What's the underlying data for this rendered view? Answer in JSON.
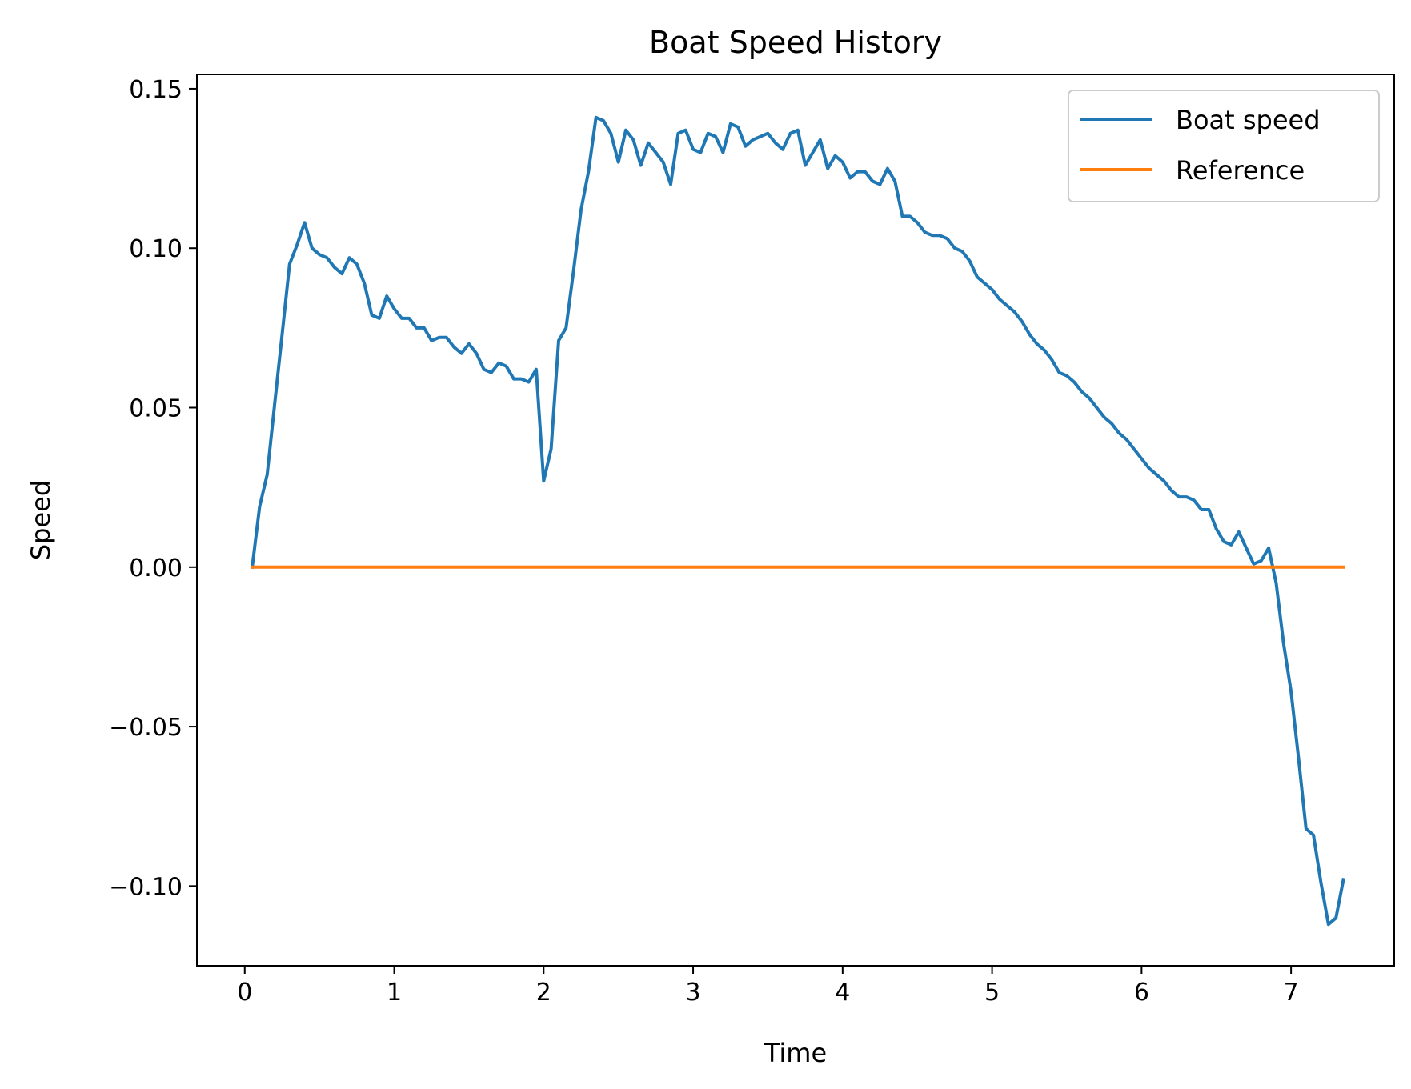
{
  "chart_data": {
    "type": "line",
    "title": "Boat Speed History",
    "xlabel": "Time",
    "ylabel": "Speed",
    "xlim": [
      -0.32,
      7.69
    ],
    "ylim": [
      -0.125,
      0.1545
    ],
    "xticks": [
      0,
      1,
      2,
      3,
      4,
      5,
      6,
      7
    ],
    "xtick_labels": [
      "0",
      "1",
      "2",
      "3",
      "4",
      "5",
      "6",
      "7"
    ],
    "yticks": [
      -0.1,
      -0.05,
      0.0,
      0.05,
      0.1,
      0.15
    ],
    "ytick_labels": [
      "−0.10",
      "−0.05",
      "0.00",
      "0.05",
      "0.10",
      "0.15"
    ],
    "grid": false,
    "legend": {
      "position": "top-right"
    },
    "series": [
      {
        "name": "Boat speed",
        "color": "#1f77b4",
        "x": [
          0.05,
          0.1,
          0.15,
          0.2,
          0.25,
          0.3,
          0.35,
          0.4,
          0.45,
          0.5,
          0.55,
          0.6,
          0.65,
          0.7,
          0.75,
          0.8,
          0.85,
          0.9,
          0.95,
          1.0,
          1.05,
          1.1,
          1.15,
          1.2,
          1.25,
          1.3,
          1.35,
          1.4,
          1.45,
          1.5,
          1.55,
          1.6,
          1.65,
          1.7,
          1.75,
          1.8,
          1.85,
          1.9,
          1.95,
          2.0,
          2.05,
          2.1,
          2.15,
          2.2,
          2.25,
          2.3,
          2.35,
          2.4,
          2.45,
          2.5,
          2.55,
          2.6,
          2.65,
          2.7,
          2.75,
          2.8,
          2.85,
          2.9,
          2.95,
          3.0,
          3.05,
          3.1,
          3.15,
          3.2,
          3.25,
          3.3,
          3.35,
          3.4,
          3.45,
          3.5,
          3.55,
          3.6,
          3.65,
          3.7,
          3.75,
          3.8,
          3.85,
          3.9,
          3.95,
          4.0,
          4.05,
          4.1,
          4.15,
          4.2,
          4.25,
          4.3,
          4.35,
          4.4,
          4.45,
          4.5,
          4.55,
          4.6,
          4.65,
          4.7,
          4.75,
          4.8,
          4.85,
          4.9,
          4.95,
          5.0,
          5.05,
          5.1,
          5.15,
          5.2,
          5.25,
          5.3,
          5.35,
          5.4,
          5.45,
          5.5,
          5.55,
          5.6,
          5.65,
          5.7,
          5.75,
          5.8,
          5.85,
          5.9,
          5.95,
          6.0,
          6.05,
          6.1,
          6.15,
          6.2,
          6.25,
          6.3,
          6.35,
          6.4,
          6.45,
          6.5,
          6.55,
          6.6,
          6.65,
          6.7,
          6.75,
          6.8,
          6.85,
          6.9,
          6.95,
          7.0,
          7.05,
          7.1,
          7.15,
          7.2,
          7.25,
          7.3,
          7.35
        ],
        "y": [
          0.0,
          0.019,
          0.029,
          0.051,
          0.073,
          0.095,
          0.101,
          0.108,
          0.1,
          0.098,
          0.097,
          0.094,
          0.092,
          0.097,
          0.095,
          0.089,
          0.079,
          0.078,
          0.085,
          0.081,
          0.078,
          0.078,
          0.075,
          0.075,
          0.071,
          0.072,
          0.072,
          0.069,
          0.067,
          0.07,
          0.067,
          0.062,
          0.061,
          0.064,
          0.063,
          0.059,
          0.059,
          0.058,
          0.062,
          0.027,
          0.037,
          0.071,
          0.075,
          0.093,
          0.112,
          0.124,
          0.141,
          0.14,
          0.136,
          0.127,
          0.137,
          0.134,
          0.126,
          0.133,
          0.13,
          0.127,
          0.12,
          0.136,
          0.137,
          0.131,
          0.13,
          0.136,
          0.135,
          0.13,
          0.139,
          0.138,
          0.132,
          0.134,
          0.135,
          0.136,
          0.133,
          0.131,
          0.136,
          0.137,
          0.126,
          0.13,
          0.134,
          0.125,
          0.129,
          0.127,
          0.122,
          0.124,
          0.124,
          0.121,
          0.12,
          0.125,
          0.121,
          0.11,
          0.11,
          0.108,
          0.105,
          0.104,
          0.104,
          0.103,
          0.1,
          0.099,
          0.096,
          0.091,
          0.089,
          0.087,
          0.084,
          0.082,
          0.08,
          0.077,
          0.073,
          0.07,
          0.068,
          0.065,
          0.061,
          0.06,
          0.058,
          0.055,
          0.053,
          0.05,
          0.047,
          0.045,
          0.042,
          0.04,
          0.037,
          0.034,
          0.031,
          0.029,
          0.027,
          0.024,
          0.022,
          0.022,
          0.021,
          0.018,
          0.018,
          0.012,
          0.008,
          0.007,
          0.011,
          0.006,
          0.001,
          0.002,
          0.006,
          -0.005,
          -0.024,
          -0.039,
          -0.06,
          -0.082,
          -0.084,
          -0.099,
          -0.112,
          -0.11,
          -0.098
        ]
      },
      {
        "name": "Reference",
        "color": "#ff7f0e",
        "x": [
          0.05,
          7.35
        ],
        "y": [
          0.0,
          0.0
        ]
      }
    ]
  }
}
